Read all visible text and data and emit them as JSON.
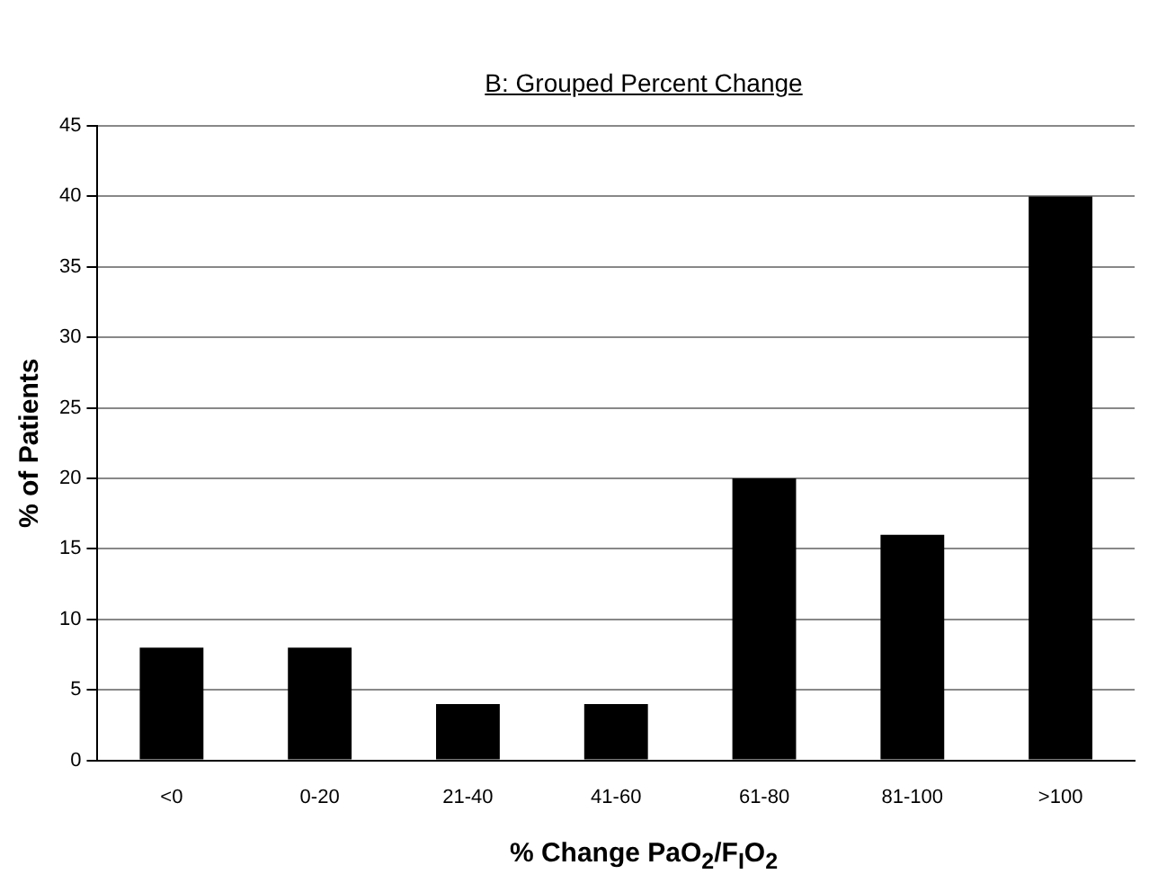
{
  "chart_data": {
    "type": "bar",
    "title": "B: Grouped Percent Change",
    "xlabel": "% Change PaO$_{2}$/F$_{I}$O$_{2}$",
    "ylabel": "% of Patients",
    "categories": [
      "<0",
      "0-20",
      "21-40",
      "41-60",
      "61-80",
      "81-100",
      ">100"
    ],
    "values": [
      8,
      8,
      4,
      4,
      20,
      16,
      40
    ],
    "color": "#000000",
    "ylim": [
      0,
      45
    ],
    "yticks": [
      0,
      5,
      10,
      15,
      20,
      25,
      30,
      35,
      40,
      45
    ],
    "grid": "y",
    "legend": false
  }
}
